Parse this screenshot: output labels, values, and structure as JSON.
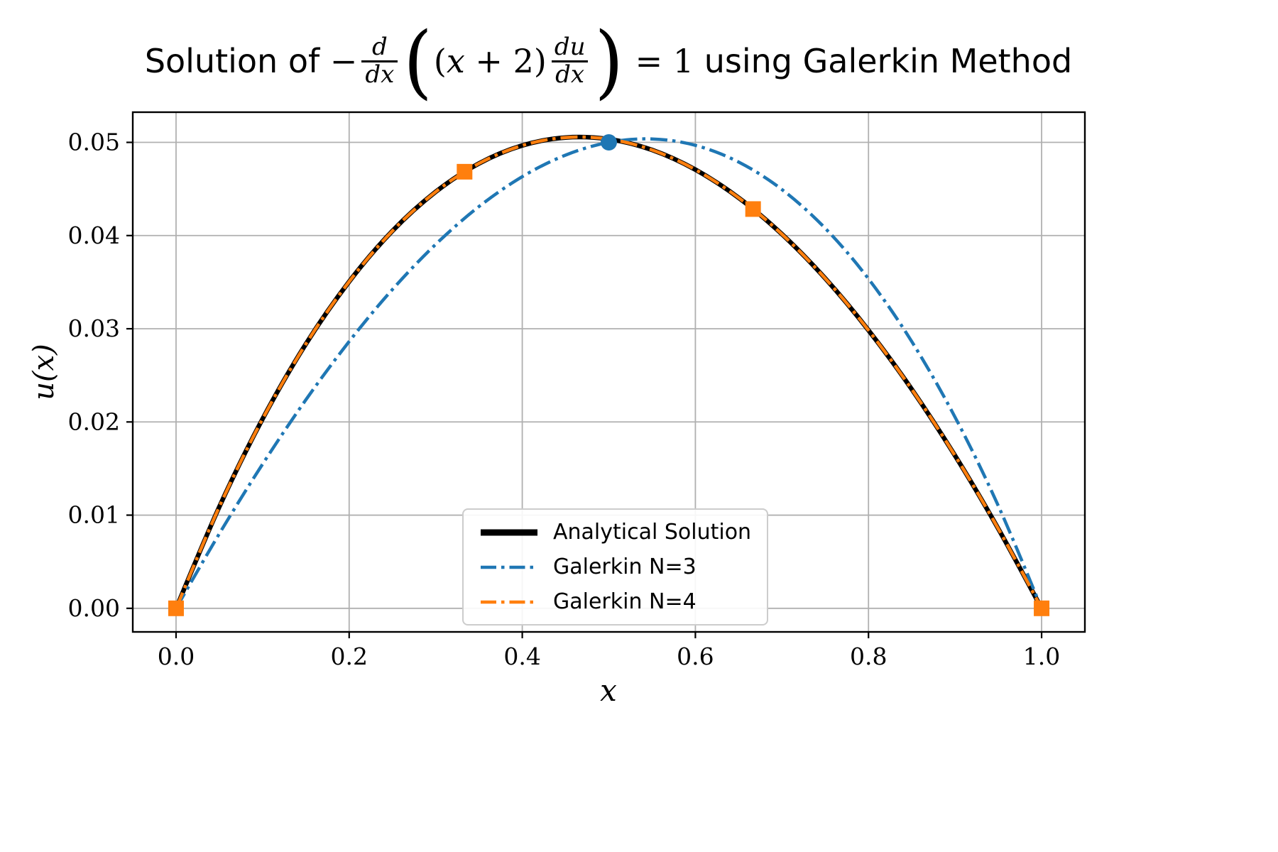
{
  "figure": {
    "title": {
      "prefix": "Solution of ",
      "minus": "−",
      "frac1": {
        "num": "d",
        "den": "dx"
      },
      "lparen": "(",
      "expr": {
        "open": "(",
        "var": "x",
        "op": " + ",
        "num": "2",
        "close": ")"
      },
      "frac2": {
        "num": "du",
        "den": "dx"
      },
      "rparen": ")",
      "equals": " = 1",
      "suffix": " using Galerkin Method"
    },
    "xlabel": "x",
    "ylabel": "u(x)"
  },
  "chart_data": {
    "type": "line",
    "title": "Solution of -d/dx((x+2)du/dx) = 1 using Galerkin Method",
    "xlabel": "x",
    "ylabel": "u(x)",
    "grid": true,
    "grid_color": "#b0b0b0",
    "xlim": [
      -0.05,
      1.05
    ],
    "ylim": [
      -0.00253,
      0.05324
    ],
    "xticks": [
      "0.0",
      "0.2",
      "0.4",
      "0.6",
      "0.8",
      "1.0"
    ],
    "xtick_vals": [
      0.0,
      0.2,
      0.4,
      0.6,
      0.8,
      1.0
    ],
    "yticks": [
      "0.00",
      "0.01",
      "0.02",
      "0.03",
      "0.04",
      "0.05"
    ],
    "ytick_vals": [
      0.0,
      0.01,
      0.02,
      0.03,
      0.04,
      0.05
    ],
    "x": [
      0.0,
      0.05,
      0.1,
      0.15,
      0.2,
      0.25,
      0.3,
      0.35,
      0.4,
      0.45,
      0.5,
      0.55,
      0.6,
      0.65,
      0.7,
      0.75,
      0.8,
      0.85,
      0.9,
      0.95,
      1.0
    ],
    "series": [
      {
        "name": "Analytical Solution",
        "color": "#000000",
        "style": "solid",
        "width": 6.5,
        "values": [
          0.0,
          0.010897,
          0.020332,
          0.028365,
          0.035065,
          0.040493,
          0.044696,
          0.047738,
          0.049666,
          0.050522,
          0.050346,
          0.049183,
          0.047073,
          0.044054,
          0.040148,
          0.035404,
          0.029845,
          0.0235,
          0.016389,
          0.008534,
          0.0
        ]
      },
      {
        "name": "Galerkin N=3",
        "color": "#1f77b4",
        "style": "dashdot",
        "width": 4.5,
        "values": [
          0.0,
          0.008004,
          0.01548,
          0.022376,
          0.02864,
          0.034219,
          0.03906,
          0.043111,
          0.04632,
          0.048634,
          0.05,
          0.050366,
          0.04968,
          0.047889,
          0.04494,
          0.040781,
          0.03536,
          0.028624,
          0.02052,
          0.010996,
          0.0
        ],
        "markers": {
          "shape": "circle",
          "points": [
            [
              0.5,
              0.05
            ]
          ]
        }
      },
      {
        "name": "Galerkin N=4",
        "color": "#ff7f0e",
        "style": "dashdot",
        "width": 4.5,
        "values": [
          0.0,
          0.010897,
          0.020332,
          0.028365,
          0.035065,
          0.040493,
          0.044696,
          0.047738,
          0.049666,
          0.050522,
          0.050346,
          0.049183,
          0.047073,
          0.044054,
          0.040148,
          0.035404,
          0.029845,
          0.0235,
          0.016389,
          0.008534,
          0.0
        ],
        "markers": {
          "shape": "square",
          "points": [
            [
              0.0,
              0.0
            ],
            [
              0.333333,
              0.04685
            ],
            [
              0.666667,
              0.042845
            ],
            [
              1.0,
              0.0
            ]
          ]
        }
      }
    ],
    "legend": {
      "position": "lower center",
      "entries": [
        "Analytical Solution",
        "Galerkin N=3",
        "Galerkin N=4"
      ]
    }
  }
}
